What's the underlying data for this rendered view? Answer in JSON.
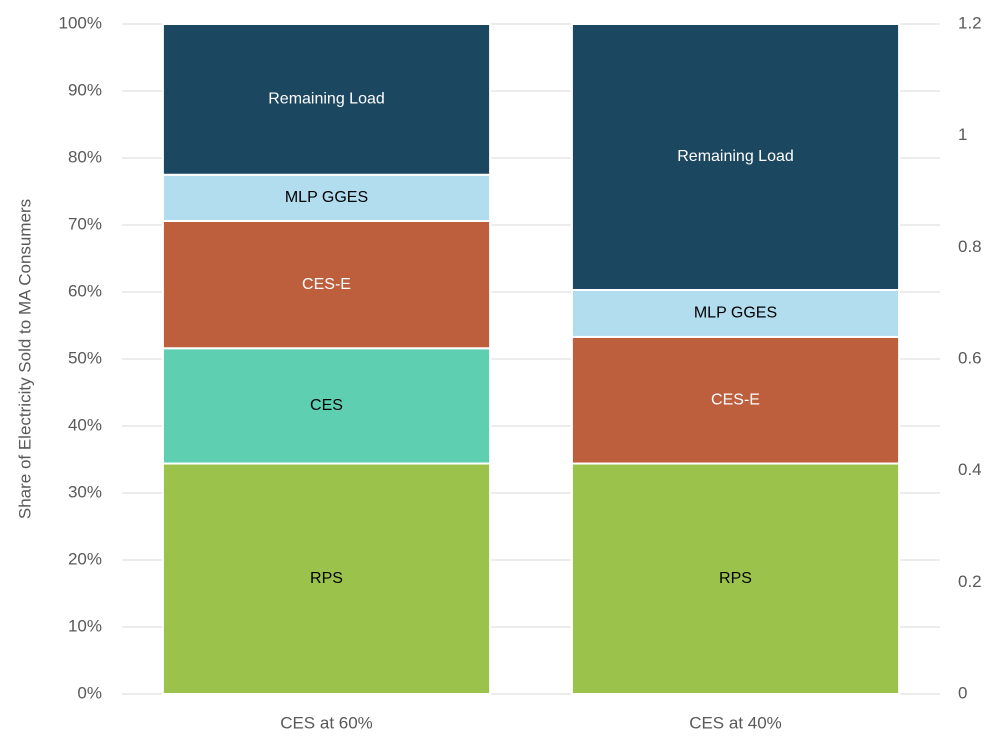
{
  "chart_data": {
    "type": "stacked_bar",
    "ylabel": "Share of Electricity Sold to MA Consumers",
    "categories": [
      "CES at 60%",
      "CES at 40%"
    ],
    "series": [
      {
        "name": "RPS",
        "color": "#9bc34b",
        "values": [
          34.4,
          34.4
        ]
      },
      {
        "name": "CES",
        "color": "#5ecfb1",
        "values": [
          17.2,
          0
        ]
      },
      {
        "name": "CES-E",
        "color": "#bd5e3d",
        "values": [
          19.0,
          18.9
        ]
      },
      {
        "name": "MLP GGES",
        "color": "#b1ddef",
        "values": [
          6.9,
          7.0
        ]
      },
      {
        "name": "Remaining Load",
        "color": "#1c4760",
        "values": [
          22.5,
          39.7
        ]
      }
    ],
    "ylim": [
      0,
      100
    ],
    "yticks": [
      {
        "value": 0,
        "label": "0%"
      },
      {
        "value": 10,
        "label": "10%"
      },
      {
        "value": 20,
        "label": "20%"
      },
      {
        "value": 30,
        "label": "30%"
      },
      {
        "value": 40,
        "label": "40%"
      },
      {
        "value": 50,
        "label": "50%"
      },
      {
        "value": 60,
        "label": "60%"
      },
      {
        "value": 70,
        "label": "70%"
      },
      {
        "value": 80,
        "label": "80%"
      },
      {
        "value": 90,
        "label": "90%"
      },
      {
        "value": 100,
        "label": "100%"
      }
    ],
    "y2lim": [
      0,
      1.2
    ],
    "y2ticks": [
      0,
      0.2,
      0.4,
      0.6,
      0.8,
      1,
      1.2
    ],
    "grid": true
  }
}
